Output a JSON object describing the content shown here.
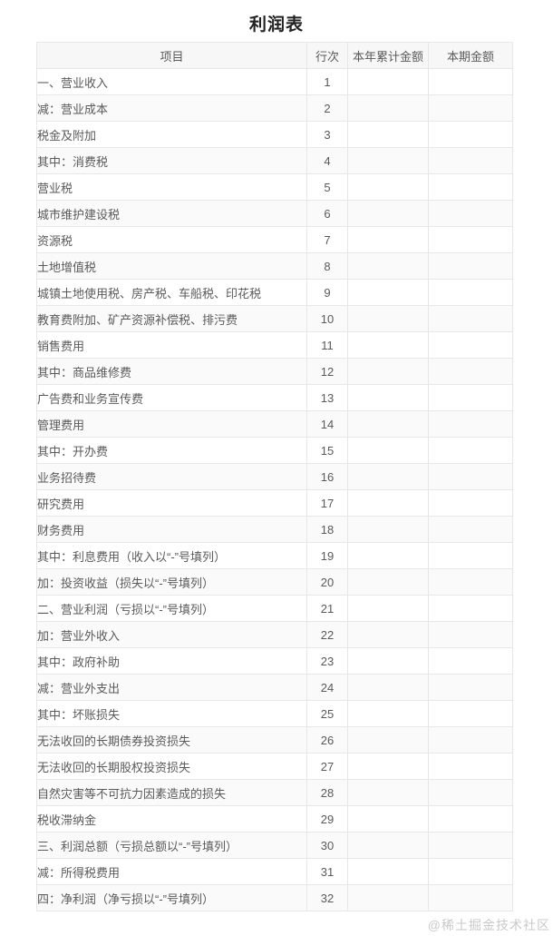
{
  "page": {
    "title": "利润表",
    "watermark": "@稀土掘金技术社区"
  },
  "colors": {
    "border": "#e7e7e7",
    "header_bg": "#f7f7f7",
    "stripe_bg": "#fafafa",
    "cell_text": "#5a5a5a",
    "title_text": "#222222",
    "watermark_text": "#c9c9c9"
  },
  "table": {
    "headers": {
      "item": "项目",
      "line_no": "行次",
      "ytd_amount": "本年累计金额",
      "period_amount": "本期金额"
    },
    "rows": [
      {
        "item": "一、营业收入",
        "line": "1",
        "indent": 0,
        "ytd": "",
        "period": ""
      },
      {
        "item": "减：营业成本",
        "line": "2",
        "indent": 0,
        "ytd": "",
        "period": ""
      },
      {
        "item": "税金及附加",
        "line": "3",
        "indent": 1,
        "ytd": "",
        "period": ""
      },
      {
        "item": "其中：消费税",
        "line": "4",
        "indent": 2,
        "ytd": "",
        "period": ""
      },
      {
        "item": "营业税",
        "line": "5",
        "indent": 3,
        "ytd": "",
        "period": ""
      },
      {
        "item": "城市维护建设税",
        "line": "6",
        "indent": 3,
        "ytd": "",
        "period": ""
      },
      {
        "item": "资源税",
        "line": "7",
        "indent": 3,
        "ytd": "",
        "period": ""
      },
      {
        "item": "土地增值税",
        "line": "8",
        "indent": 3,
        "ytd": "",
        "period": ""
      },
      {
        "item": "城镇土地使用税、房产税、车船税、印花税",
        "line": "9",
        "indent": 3,
        "ytd": "",
        "period": ""
      },
      {
        "item": "教育费附加、矿产资源补偿税、排污费",
        "line": "10",
        "indent": 3,
        "ytd": "",
        "period": ""
      },
      {
        "item": "销售费用",
        "line": "11",
        "indent": 1,
        "ytd": "",
        "period": ""
      },
      {
        "item": "其中：商品维修费",
        "line": "12",
        "indent": 2,
        "ytd": "",
        "period": ""
      },
      {
        "item": "广告费和业务宣传费",
        "line": "13",
        "indent": 3,
        "ytd": "",
        "period": ""
      },
      {
        "item": "管理费用",
        "line": "14",
        "indent": 1,
        "ytd": "",
        "period": ""
      },
      {
        "item": "其中：开办费",
        "line": "15",
        "indent": 2,
        "ytd": "",
        "period": ""
      },
      {
        "item": "业务招待费",
        "line": "16",
        "indent": 3,
        "ytd": "",
        "period": ""
      },
      {
        "item": "研究费用",
        "line": "17",
        "indent": 3,
        "ytd": "",
        "period": ""
      },
      {
        "item": "财务费用",
        "line": "18",
        "indent": 1,
        "ytd": "",
        "period": ""
      },
      {
        "item": "其中：利息费用（收入以“-”号填列）",
        "line": "19",
        "indent": 2,
        "ytd": "",
        "period": ""
      },
      {
        "item": "加：投资收益（损失以“-”号填列）",
        "line": "20",
        "indent": 0,
        "ytd": "",
        "period": ""
      },
      {
        "item": "二、营业利润（亏损以“-”号填列）",
        "line": "21",
        "indent": 0,
        "ytd": "",
        "period": ""
      },
      {
        "item": "加：营业外收入",
        "line": "22",
        "indent": 0,
        "ytd": "",
        "period": ""
      },
      {
        "item": "其中：政府补助",
        "line": "23",
        "indent": 1,
        "ytd": "",
        "period": ""
      },
      {
        "item": "减：营业外支出",
        "line": "24",
        "indent": 0,
        "ytd": "",
        "period": ""
      },
      {
        "item": "其中：坏账损失",
        "line": "25",
        "indent": 1,
        "ytd": "",
        "period": ""
      },
      {
        "item": "无法收回的长期债券投资损失",
        "line": "26",
        "indent": 2,
        "ytd": "",
        "period": ""
      },
      {
        "item": "无法收回的长期股权投资损失",
        "line": "27",
        "indent": 2,
        "ytd": "",
        "period": ""
      },
      {
        "item": "自然灾害等不可抗力因素造成的损失",
        "line": "28",
        "indent": 2,
        "ytd": "",
        "period": ""
      },
      {
        "item": "税收滞纳金",
        "line": "29",
        "indent": 2,
        "ytd": "",
        "period": ""
      },
      {
        "item": "三、利润总额（亏损总额以“-”号填列）",
        "line": "30",
        "indent": 0,
        "ytd": "",
        "period": ""
      },
      {
        "item": "减：所得税费用",
        "line": "31",
        "indent": 0,
        "ytd": "",
        "period": ""
      },
      {
        "item": "四：净利润（净亏损以“-”号填列）",
        "line": "32",
        "indent": 0,
        "ytd": "",
        "period": ""
      }
    ]
  }
}
